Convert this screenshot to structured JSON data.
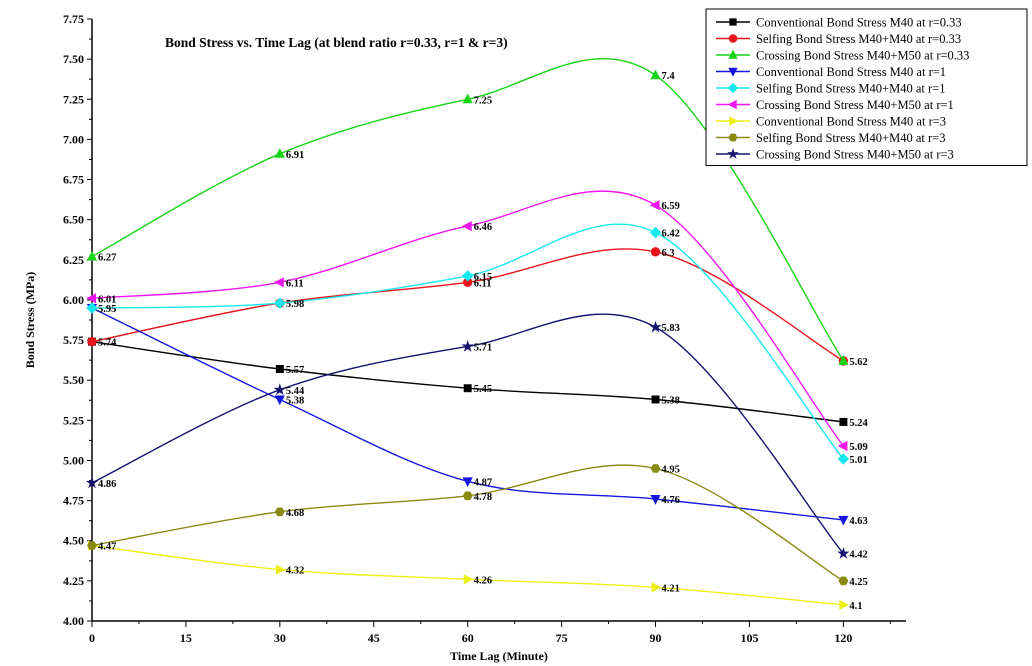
{
  "chart_data": {
    "type": "line",
    "title": "Bond Stress vs. Time Lag (at blend ratio r=0.33, r=1 & r=3)",
    "xlabel": "Time Lag (Minute)",
    "ylabel": "Bond Stress (MPa)",
    "xlim": [
      0,
      130
    ],
    "ylim": [
      4.0,
      7.75
    ],
    "xticks": [
      0,
      15,
      30,
      45,
      60,
      75,
      90,
      105,
      120
    ],
    "yticks": [
      4.0,
      4.25,
      4.5,
      4.75,
      5.0,
      5.25,
      5.5,
      5.75,
      6.0,
      6.25,
      6.5,
      6.75,
      7.0,
      7.25,
      7.5,
      7.75
    ],
    "x": [
      0,
      30,
      60,
      90,
      120
    ],
    "legend_position": "top-right",
    "series": [
      {
        "name": "Conventional Bond Stress  M40 at r=0.33",
        "color": "#000000",
        "marker": "square",
        "values": [
          5.74,
          5.57,
          5.45,
          5.38,
          5.24
        ],
        "labels": [
          "",
          "5.57",
          "5.45",
          "5.38",
          "5.24"
        ]
      },
      {
        "name": "Selfing Bond Stress M40+M40 at r=0.33",
        "color": "#e8141c",
        "marker": "circle",
        "values": [
          5.74,
          5.98,
          6.11,
          6.3,
          5.62
        ],
        "labels": [
          "5.74",
          "",
          "6.11",
          "6.3",
          ""
        ]
      },
      {
        "name": "Crossing Bond Stress M40+M50 at r=0.33",
        "color": "#16d416",
        "marker": "triangle-up",
        "values": [
          6.27,
          6.91,
          7.25,
          7.4,
          5.62
        ],
        "labels": [
          "6.27",
          "6.91",
          "7.25",
          "7.4",
          "5.62"
        ]
      },
      {
        "name": "Conventional Bond Stress  M40 at r=1",
        "color": "#1616e0",
        "marker": "triangle-down",
        "values": [
          5.95,
          5.38,
          4.87,
          4.76,
          4.63
        ],
        "labels": [
          "",
          "5.38",
          "4.87",
          "4.76",
          "4.63"
        ]
      },
      {
        "name": "Selfing Bond Stress M40+M40 at r=1",
        "color": "#16e8ee",
        "marker": "diamond",
        "values": [
          5.95,
          5.98,
          6.15,
          6.42,
          5.01
        ],
        "labels": [
          "5.95",
          "5.98",
          "6.15",
          "6.42",
          "5.01"
        ]
      },
      {
        "name": "Crossing Bond Stress M40+M50 at r=1",
        "color": "#ee16ee",
        "marker": "triangle-left",
        "values": [
          6.01,
          6.11,
          6.46,
          6.59,
          5.09
        ],
        "labels": [
          "6.01",
          "6.11",
          "6.46",
          "6.59",
          "5.09"
        ]
      },
      {
        "name": "Conventional Bond Stress  M40 at r=3",
        "color": "#eeee16",
        "marker": "triangle-right",
        "values": [
          4.47,
          4.32,
          4.26,
          4.21,
          4.1
        ],
        "labels": [
          "",
          "4.32",
          "4.26",
          "4.21",
          "4.1"
        ]
      },
      {
        "name": "Selfing Bond Stress M40+M40 at r=3",
        "color": "#8a8a12",
        "marker": "hexagon",
        "values": [
          4.47,
          4.68,
          4.78,
          4.95,
          4.25
        ],
        "labels": [
          "4.47",
          "4.68",
          "4.78",
          "4.95",
          "4.25"
        ]
      },
      {
        "name": "Crossing Bond Stress M40+M50 at r=3",
        "color": "#141470",
        "marker": "star",
        "values": [
          4.86,
          5.44,
          5.71,
          5.83,
          4.42
        ],
        "labels": [
          "4.86",
          "5.44",
          "5.71",
          "5.83",
          "4.42"
        ]
      }
    ]
  }
}
